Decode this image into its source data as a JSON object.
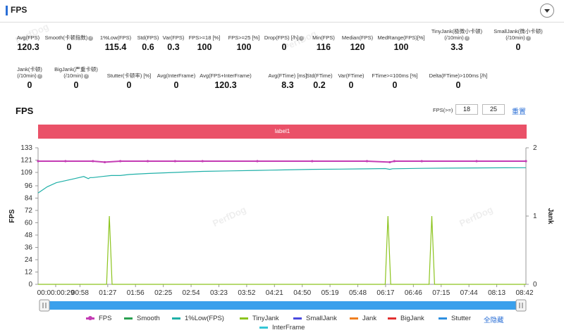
{
  "header": {
    "title": "FPS"
  },
  "stats_row1": [
    {
      "label": "Avg(FPS)",
      "value": "120.3",
      "help": false
    },
    {
      "label": "Smooth(卡顿指数)",
      "value": "0",
      "help": true
    },
    {
      "label": "1%Low(FPS)",
      "value": "115.4",
      "help": false
    },
    {
      "label": "Std(FPS)",
      "value": "0.6",
      "help": false
    },
    {
      "label": "Var(FPS)",
      "value": "0.3",
      "help": false
    },
    {
      "label": "FPS>=18 [%]",
      "value": "100",
      "help": false
    },
    {
      "label": "FPS>=25 [%]",
      "value": "100",
      "help": false
    },
    {
      "label": "Drop(FPS) [/h]",
      "value": "0",
      "help": true
    },
    {
      "label": "Min(FPS)",
      "value": "116",
      "help": false
    },
    {
      "label": "Median(FPS)",
      "value": "120",
      "help": false
    },
    {
      "label": "MedRange(FPS)[%]",
      "value": "100",
      "help": false
    },
    {
      "label": "TinyJank(极微小卡顿)\n(/10min)",
      "value": "3.3",
      "help": true
    },
    {
      "label": "SmallJank(微小卡顿)\n(/10min)",
      "value": "0",
      "help": true
    }
  ],
  "stats_row2": [
    {
      "label": "Jank(卡顿)\n(/10min)",
      "value": "0",
      "help": true
    },
    {
      "label": "BigJank(严重卡顿)\n(/10min)",
      "value": "0",
      "help": true
    },
    {
      "label": "Stutter(卡顿率) [%]",
      "value": "0",
      "help": false
    },
    {
      "label": "Avg(InterFrame)",
      "value": "0",
      "help": false
    },
    {
      "label": "Avg(FPS+InterFrame)",
      "value": "120.3",
      "help": false
    },
    {
      "label": "Avg(FTime) [ms]",
      "value": "8.3",
      "help": false
    },
    {
      "label": "Std(FTime)",
      "value": "0.2",
      "help": false
    },
    {
      "label": "Var(FTime)",
      "value": "0",
      "help": false
    },
    {
      "label": "FTime>=100ms [%]",
      "value": "0",
      "help": false
    },
    {
      "label": "Delta(FTime)>100ms [/h]",
      "value": "0",
      "help": false
    }
  ],
  "chart_section": {
    "title": "FPS",
    "threshold_label": "FPS(>=)",
    "threshold_1": "18",
    "threshold_2": "25",
    "reset_label": "重置",
    "band_label": "label1"
  },
  "watermark": "PerfDog",
  "chart_data": {
    "type": "line",
    "title": "",
    "ylabel": "FPS",
    "y2label": "Jank",
    "ylim": [
      0,
      133
    ],
    "y2lim": [
      0,
      2
    ],
    "yticks": [
      0,
      12,
      24,
      36,
      48,
      60,
      72,
      84,
      96,
      109,
      121,
      133
    ],
    "y2ticks": [
      0,
      1,
      2
    ],
    "xticks": [
      "00:00:00:29",
      "00:58",
      "01:27",
      "01:56",
      "02:25",
      "02:54",
      "03:23",
      "03:52",
      "04:21",
      "04:50",
      "05:19",
      "05:48",
      "06:17",
      "06:46",
      "07:15",
      "07:44",
      "08:13",
      "08:42"
    ],
    "x_range_s": [
      0,
      534
    ],
    "fps_series": {
      "name": "FPS",
      "x_s": [
        0,
        30,
        60,
        73,
        90,
        120,
        150,
        180,
        240,
        300,
        360,
        385,
        390,
        420,
        480,
        534
      ],
      "values": [
        120,
        120,
        120,
        119,
        120,
        120,
        120,
        120,
        120,
        120,
        120,
        119,
        120,
        120,
        120,
        120
      ]
    },
    "low1_series": {
      "name": "1%Low(FPS)",
      "x_s": [
        0,
        10,
        20,
        30,
        40,
        50,
        55,
        57,
        60,
        70,
        80,
        90,
        100,
        120,
        150,
        180,
        210,
        240,
        270,
        300,
        330,
        360,
        380,
        385,
        388,
        420,
        450,
        480,
        510,
        534
      ],
      "values": [
        89,
        95,
        99,
        101,
        103,
        105,
        103,
        104,
        104,
        105,
        106,
        106,
        107,
        108,
        109,
        110,
        110.5,
        111,
        111.5,
        112,
        112.2,
        112.5,
        112.8,
        112,
        112.6,
        113,
        113.2,
        113.4,
        113.5,
        113.6
      ]
    },
    "tinyjank_series": {
      "name": "TinyJank",
      "x_s": [
        0,
        75,
        78,
        81,
        380,
        383,
        386,
        428,
        431,
        434,
        534
      ],
      "values": [
        0,
        0,
        1,
        0,
        0,
        1,
        0,
        0,
        1,
        0,
        0
      ]
    },
    "legend": [
      "FPS",
      "Smooth",
      "1%Low(FPS)",
      "TinyJank",
      "SmallJank",
      "Jank",
      "BigJank",
      "Stutter",
      "全隐藏",
      "InterFrame"
    ],
    "colors": {
      "FPS": "#c43cb4",
      "Smooth": "#2aa050",
      "1%Low(FPS)": "#1fb0a8",
      "TinyJank": "#8cc41e",
      "SmallJank": "#4a4adf",
      "Jank": "#f08020",
      "BigJank": "#e23030",
      "Stutter": "#2e8fe0",
      "InterFrame": "#35c6d6"
    }
  }
}
